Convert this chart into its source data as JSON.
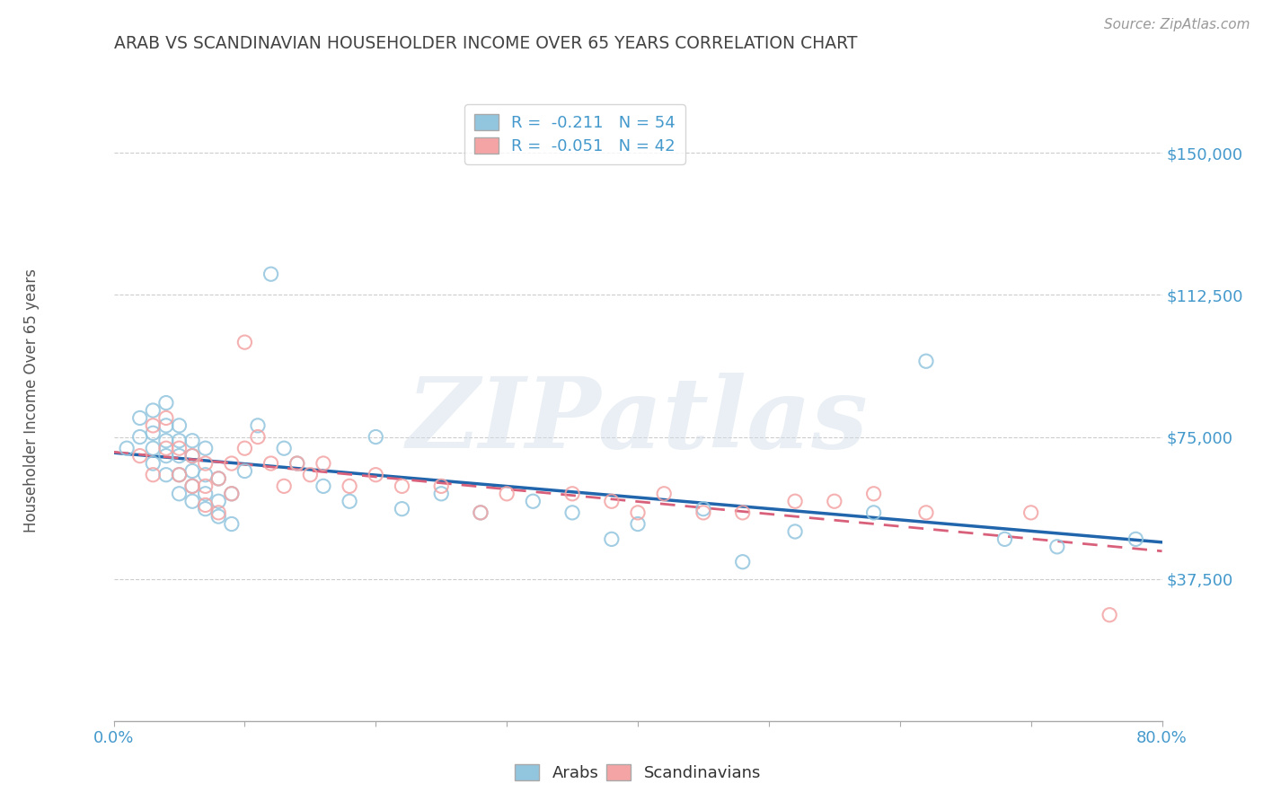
{
  "title": "ARAB VS SCANDINAVIAN HOUSEHOLDER INCOME OVER 65 YEARS CORRELATION CHART",
  "source": "Source: ZipAtlas.com",
  "ylabel": "Householder Income Over 65 years",
  "xlim": [
    0.0,
    0.8
  ],
  "ylim": [
    0,
    165000
  ],
  "yticks": [
    37500,
    75000,
    112500,
    150000
  ],
  "ytick_labels": [
    "$37,500",
    "$75,000",
    "$112,500",
    "$150,000"
  ],
  "background_color": "#ffffff",
  "grid_color": "#cccccc",
  "arab_color": "#92c5de",
  "scand_color": "#f4a4a4",
  "arab_line_color": "#2166ac",
  "scand_line_color": "#d9607a",
  "legend_arab_R": "-0.211",
  "legend_arab_N": "54",
  "legend_scand_R": "-0.051",
  "legend_scand_N": "42",
  "title_color": "#444444",
  "axis_label_color": "#4499cc",
  "watermark": "ZIPatlas",
  "arab_x": [
    0.01,
    0.02,
    0.02,
    0.03,
    0.03,
    0.03,
    0.03,
    0.04,
    0.04,
    0.04,
    0.04,
    0.04,
    0.05,
    0.05,
    0.05,
    0.05,
    0.05,
    0.06,
    0.06,
    0.06,
    0.06,
    0.06,
    0.07,
    0.07,
    0.07,
    0.07,
    0.08,
    0.08,
    0.08,
    0.09,
    0.09,
    0.1,
    0.11,
    0.12,
    0.13,
    0.14,
    0.16,
    0.18,
    0.2,
    0.22,
    0.25,
    0.28,
    0.32,
    0.35,
    0.38,
    0.4,
    0.45,
    0.48,
    0.52,
    0.58,
    0.62,
    0.68,
    0.72,
    0.78
  ],
  "arab_y": [
    72000,
    75000,
    80000,
    68000,
    72000,
    76000,
    82000,
    65000,
    70000,
    74000,
    78000,
    84000,
    60000,
    65000,
    70000,
    74000,
    78000,
    58000,
    62000,
    66000,
    70000,
    74000,
    56000,
    60000,
    65000,
    72000,
    54000,
    58000,
    64000,
    52000,
    60000,
    66000,
    78000,
    118000,
    72000,
    68000,
    62000,
    58000,
    75000,
    56000,
    60000,
    55000,
    58000,
    55000,
    48000,
    52000,
    56000,
    42000,
    50000,
    55000,
    95000,
    48000,
    46000,
    48000
  ],
  "scand_x": [
    0.02,
    0.03,
    0.03,
    0.04,
    0.04,
    0.05,
    0.05,
    0.06,
    0.06,
    0.07,
    0.07,
    0.07,
    0.08,
    0.08,
    0.09,
    0.09,
    0.1,
    0.1,
    0.11,
    0.12,
    0.13,
    0.14,
    0.15,
    0.16,
    0.18,
    0.2,
    0.22,
    0.25,
    0.28,
    0.3,
    0.35,
    0.38,
    0.4,
    0.42,
    0.45,
    0.48,
    0.52,
    0.55,
    0.58,
    0.62,
    0.7,
    0.76
  ],
  "scand_y": [
    70000,
    78000,
    65000,
    72000,
    80000,
    65000,
    72000,
    62000,
    70000,
    57000,
    62000,
    68000,
    55000,
    64000,
    60000,
    68000,
    100000,
    72000,
    75000,
    68000,
    62000,
    68000,
    65000,
    68000,
    62000,
    65000,
    62000,
    62000,
    55000,
    60000,
    60000,
    58000,
    55000,
    60000,
    55000,
    55000,
    58000,
    58000,
    60000,
    55000,
    55000,
    28000
  ]
}
